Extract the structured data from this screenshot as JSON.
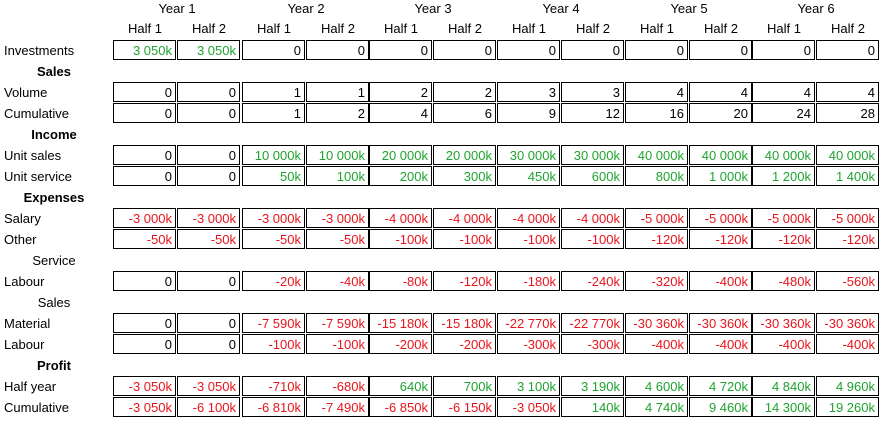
{
  "years": [
    "Year 1",
    "Year 2",
    "Year 3",
    "Year 4",
    "Year 5",
    "Year 6"
  ],
  "halves": [
    "Half 1",
    "Half 2",
    "Half 1",
    "Half 2",
    "Half 1",
    "Half 2",
    "Half 1",
    "Half 2",
    "Half 1",
    "Half 2",
    "Half 1",
    "Half 2"
  ],
  "colors": {
    "positive": "#1fa32f",
    "negative": "#e8141c",
    "neutral": "#000000"
  },
  "rows": [
    {
      "type": "data",
      "label": "Investments",
      "values": [
        "3 050k",
        "3 050k",
        "0",
        "0",
        "0",
        "0",
        "0",
        "0",
        "0",
        "0",
        "0",
        "0"
      ],
      "colors": [
        "g",
        "g",
        "k",
        "k",
        "k",
        "k",
        "k",
        "k",
        "k",
        "k",
        "k",
        "k"
      ]
    },
    {
      "type": "section",
      "label": "Sales",
      "bold": true
    },
    {
      "type": "data",
      "label": "Volume",
      "values": [
        "0",
        "0",
        "1",
        "1",
        "2",
        "2",
        "3",
        "3",
        "4",
        "4",
        "4",
        "4"
      ],
      "colors": [
        "k",
        "k",
        "k",
        "k",
        "k",
        "k",
        "k",
        "k",
        "k",
        "k",
        "k",
        "k"
      ]
    },
    {
      "type": "data",
      "label": "Cumulative",
      "values": [
        "0",
        "0",
        "1",
        "2",
        "4",
        "6",
        "9",
        "12",
        "16",
        "20",
        "24",
        "28"
      ],
      "colors": [
        "k",
        "k",
        "k",
        "k",
        "k",
        "k",
        "k",
        "k",
        "k",
        "k",
        "k",
        "k"
      ]
    },
    {
      "type": "section",
      "label": "Income",
      "bold": true
    },
    {
      "type": "data",
      "label": "Unit sales",
      "values": [
        "0",
        "0",
        "10 000k",
        "10 000k",
        "20 000k",
        "20 000k",
        "30 000k",
        "30 000k",
        "40 000k",
        "40 000k",
        "40 000k",
        "40 000k"
      ],
      "colors": [
        "k",
        "k",
        "g",
        "g",
        "g",
        "g",
        "g",
        "g",
        "g",
        "g",
        "g",
        "g"
      ]
    },
    {
      "type": "data",
      "label": "Unit service",
      "values": [
        "0",
        "0",
        "50k",
        "100k",
        "200k",
        "300k",
        "450k",
        "600k",
        "800k",
        "1 000k",
        "1 200k",
        "1 400k"
      ],
      "colors": [
        "k",
        "k",
        "g",
        "g",
        "g",
        "g",
        "g",
        "g",
        "g",
        "g",
        "g",
        "g"
      ]
    },
    {
      "type": "section",
      "label": "Expenses",
      "bold": true
    },
    {
      "type": "data",
      "label": "Salary",
      "values": [
        "-3 000k",
        "-3 000k",
        "-3 000k",
        "-3 000k",
        "-4 000k",
        "-4 000k",
        "-4 000k",
        "-4 000k",
        "-5 000k",
        "-5 000k",
        "-5 000k",
        "-5 000k"
      ],
      "colors": [
        "r",
        "r",
        "r",
        "r",
        "r",
        "r",
        "r",
        "r",
        "r",
        "r",
        "r",
        "r"
      ]
    },
    {
      "type": "data",
      "label": "Other",
      "values": [
        "-50k",
        "-50k",
        "-50k",
        "-50k",
        "-100k",
        "-100k",
        "-100k",
        "-100k",
        "-120k",
        "-120k",
        "-120k",
        "-120k"
      ],
      "colors": [
        "r",
        "r",
        "r",
        "r",
        "r",
        "r",
        "r",
        "r",
        "r",
        "r",
        "r",
        "r"
      ]
    },
    {
      "type": "section",
      "label": "Service",
      "bold": false
    },
    {
      "type": "data",
      "label": "Labour",
      "values": [
        "0",
        "0",
        "-20k",
        "-40k",
        "-80k",
        "-120k",
        "-180k",
        "-240k",
        "-320k",
        "-400k",
        "-480k",
        "-560k"
      ],
      "colors": [
        "k",
        "k",
        "r",
        "r",
        "r",
        "r",
        "r",
        "r",
        "r",
        "r",
        "r",
        "r"
      ]
    },
    {
      "type": "section",
      "label": "Sales",
      "bold": false
    },
    {
      "type": "data",
      "label": "Material",
      "values": [
        "0",
        "0",
        "-7 590k",
        "-7 590k",
        "-15 180k",
        "-15 180k",
        "-22 770k",
        "-22 770k",
        "-30 360k",
        "-30 360k",
        "-30 360k",
        "-30 360k"
      ],
      "colors": [
        "k",
        "k",
        "r",
        "r",
        "r",
        "r",
        "r",
        "r",
        "r",
        "r",
        "r",
        "r"
      ]
    },
    {
      "type": "data",
      "label": "Labour",
      "values": [
        "0",
        "0",
        "-100k",
        "-100k",
        "-200k",
        "-200k",
        "-300k",
        "-300k",
        "-400k",
        "-400k",
        "-400k",
        "-400k"
      ],
      "colors": [
        "k",
        "k",
        "r",
        "r",
        "r",
        "r",
        "r",
        "r",
        "r",
        "r",
        "r",
        "r"
      ]
    },
    {
      "type": "section",
      "label": "Profit",
      "bold": true
    },
    {
      "type": "data",
      "label": "Half year",
      "values": [
        "-3 050k",
        "-3 050k",
        "-710k",
        "-680k",
        "640k",
        "700k",
        "3 100k",
        "3 190k",
        "4 600k",
        "4 720k",
        "4 840k",
        "4 960k"
      ],
      "colors": [
        "r",
        "r",
        "r",
        "r",
        "g",
        "g",
        "g",
        "g",
        "g",
        "g",
        "g",
        "g"
      ]
    },
    {
      "type": "data",
      "label": "Cumulative",
      "values": [
        "-3 050k",
        "-6 100k",
        "-6 810k",
        "-7 490k",
        "-6 850k",
        "-6 150k",
        "-3 050k",
        "140k",
        "4 740k",
        "9 460k",
        "14 300k",
        "19 260k"
      ],
      "colors": [
        "r",
        "r",
        "r",
        "r",
        "r",
        "r",
        "r",
        "g",
        "g",
        "g",
        "g",
        "g"
      ]
    }
  ]
}
